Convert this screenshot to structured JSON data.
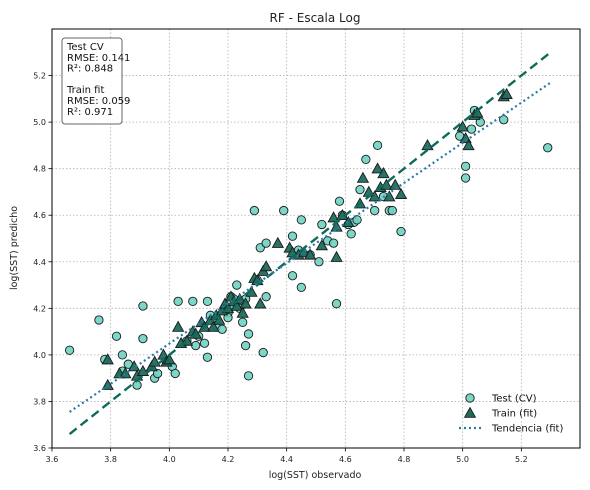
{
  "chart_data": {
    "type": "scatter",
    "title": "RF - Escala Log",
    "xlabel": "log(SST) observado",
    "ylabel": "log(SST) predicho",
    "xlim": [
      3.6,
      5.4
    ],
    "ylim": [
      3.6,
      5.4
    ],
    "xticks": [
      "3.6",
      "3.8",
      "4.0",
      "4.2",
      "4.4",
      "4.6",
      "4.8",
      "5.0",
      "5.2"
    ],
    "yticks": [
      "3.6",
      "3.8",
      "4.0",
      "4.2",
      "4.4",
      "4.6",
      "4.8",
      "5.0",
      "5.2"
    ],
    "grid": true,
    "legend_position": "bottom-right",
    "annotation": [
      "Test CV",
      "RMSE: 0.141",
      "R²: 0.848",
      "",
      "Train fit",
      "RMSE: 0.059",
      "R²: 0.971"
    ],
    "legend": {
      "test": "Test (CV)",
      "train": "Train (fit)",
      "trend": "Tendencia (fit)"
    },
    "colors": {
      "test_fill": "#6fd3c3",
      "train_fill": "#1e6b5e",
      "marker_edge": "#1a1a1a",
      "identity_line": "#0e6b5a",
      "trend_line": "#2a7aa6"
    },
    "identity_line": {
      "x": [
        3.66,
        5.3
      ],
      "y": [
        3.66,
        5.3
      ]
    },
    "trend_line": {
      "x": [
        3.66,
        5.3
      ],
      "y": [
        3.755,
        5.17
      ]
    },
    "series": [
      {
        "name": "Test (CV)",
        "marker": "circle",
        "points": [
          [
            3.66,
            4.02
          ],
          [
            3.76,
            4.15
          ],
          [
            3.78,
            3.98
          ],
          [
            3.82,
            4.08
          ],
          [
            3.84,
            4.0
          ],
          [
            3.84,
            3.93
          ],
          [
            3.86,
            3.96
          ],
          [
            3.89,
            3.87
          ],
          [
            3.91,
            4.21
          ],
          [
            3.91,
            4.07
          ],
          [
            3.95,
            3.9
          ],
          [
            3.96,
            3.92
          ],
          [
            3.99,
            3.97
          ],
          [
            4.01,
            3.95
          ],
          [
            4.02,
            3.92
          ],
          [
            4.03,
            4.23
          ],
          [
            4.06,
            4.06
          ],
          [
            4.08,
            4.23
          ],
          [
            4.09,
            4.04
          ],
          [
            4.1,
            4.08
          ],
          [
            4.12,
            4.05
          ],
          [
            4.13,
            4.23
          ],
          [
            4.13,
            3.99
          ],
          [
            4.14,
            4.17
          ],
          [
            4.16,
            4.12
          ],
          [
            4.18,
            4.11
          ],
          [
            4.19,
            4.2
          ],
          [
            4.2,
            4.18
          ],
          [
            4.2,
            4.16
          ],
          [
            4.21,
            4.25
          ],
          [
            4.22,
            4.24
          ],
          [
            4.22,
            4.21
          ],
          [
            4.23,
            4.3
          ],
          [
            4.24,
            4.2
          ],
          [
            4.25,
            4.14
          ],
          [
            4.26,
            4.24
          ],
          [
            4.26,
            4.04
          ],
          [
            4.27,
            4.09
          ],
          [
            4.27,
            3.91
          ],
          [
            4.29,
            4.62
          ],
          [
            4.3,
            4.32
          ],
          [
            4.31,
            4.46
          ],
          [
            4.32,
            4.01
          ],
          [
            4.33,
            4.48
          ],
          [
            4.33,
            4.25
          ],
          [
            4.39,
            4.62
          ],
          [
            4.42,
            4.51
          ],
          [
            4.42,
            4.34
          ],
          [
            4.44,
            4.45
          ],
          [
            4.45,
            4.58
          ],
          [
            4.45,
            4.29
          ],
          [
            4.48,
            4.43
          ],
          [
            4.51,
            4.4
          ],
          [
            4.52,
            4.56
          ],
          [
            4.54,
            4.49
          ],
          [
            4.56,
            4.48
          ],
          [
            4.57,
            4.22
          ],
          [
            4.58,
            4.66
          ],
          [
            4.59,
            4.6
          ],
          [
            4.61,
            4.56
          ],
          [
            4.62,
            4.52
          ],
          [
            4.63,
            4.57
          ],
          [
            4.64,
            4.58
          ],
          [
            4.65,
            4.71
          ],
          [
            4.67,
            4.84
          ],
          [
            4.7,
            4.62
          ],
          [
            4.71,
            4.9
          ],
          [
            4.73,
            4.68
          ],
          [
            4.75,
            4.62
          ],
          [
            4.76,
            4.62
          ],
          [
            4.79,
            4.53
          ],
          [
            4.99,
            4.94
          ],
          [
            5.01,
            4.81
          ],
          [
            5.01,
            4.76
          ],
          [
            5.03,
            4.97
          ],
          [
            5.04,
            5.05
          ],
          [
            5.06,
            5.0
          ],
          [
            5.14,
            5.01
          ],
          [
            5.29,
            4.89
          ]
        ]
      },
      {
        "name": "Train (fit)",
        "marker": "triangle",
        "points": [
          [
            3.79,
            3.87
          ],
          [
            3.79,
            3.98
          ],
          [
            3.83,
            3.92
          ],
          [
            3.85,
            3.92
          ],
          [
            3.88,
            3.95
          ],
          [
            3.89,
            3.91
          ],
          [
            3.91,
            3.93
          ],
          [
            3.94,
            3.95
          ],
          [
            3.95,
            3.97
          ],
          [
            3.98,
            4.0
          ],
          [
            3.99,
            3.97
          ],
          [
            4.0,
            3.98
          ],
          [
            4.03,
            4.12
          ],
          [
            4.04,
            4.05
          ],
          [
            4.06,
            4.06
          ],
          [
            4.08,
            4.1
          ],
          [
            4.09,
            4.09
          ],
          [
            4.11,
            4.14
          ],
          [
            4.12,
            4.12
          ],
          [
            4.14,
            4.15
          ],
          [
            4.15,
            4.12
          ],
          [
            4.16,
            4.17
          ],
          [
            4.17,
            4.15
          ],
          [
            4.18,
            4.19
          ],
          [
            4.19,
            4.22
          ],
          [
            4.2,
            4.2
          ],
          [
            4.21,
            4.25
          ],
          [
            4.22,
            4.23
          ],
          [
            4.23,
            4.21
          ],
          [
            4.24,
            4.24
          ],
          [
            4.25,
            4.18
          ],
          [
            4.26,
            4.22
          ],
          [
            4.28,
            4.27
          ],
          [
            4.29,
            4.33
          ],
          [
            4.3,
            4.32
          ],
          [
            4.31,
            4.22
          ],
          [
            4.32,
            4.36
          ],
          [
            4.33,
            4.38
          ],
          [
            4.37,
            4.48
          ],
          [
            4.41,
            4.46
          ],
          [
            4.42,
            4.44
          ],
          [
            4.44,
            4.43
          ],
          [
            4.46,
            4.44
          ],
          [
            4.48,
            4.43
          ],
          [
            4.52,
            4.47
          ],
          [
            4.56,
            4.59
          ],
          [
            4.57,
            4.42
          ],
          [
            4.57,
            4.55
          ],
          [
            4.59,
            4.6
          ],
          [
            4.61,
            4.57
          ],
          [
            4.65,
            4.65
          ],
          [
            4.66,
            4.76
          ],
          [
            4.68,
            4.7
          ],
          [
            4.7,
            4.68
          ],
          [
            4.71,
            4.8
          ],
          [
            4.72,
            4.72
          ],
          [
            4.73,
            4.78
          ],
          [
            4.74,
            4.73
          ],
          [
            4.75,
            4.68
          ],
          [
            4.77,
            4.73
          ],
          [
            4.79,
            4.69
          ],
          [
            4.88,
            4.9
          ],
          [
            5.0,
            4.98
          ],
          [
            5.01,
            4.93
          ],
          [
            5.02,
            4.9
          ],
          [
            5.04,
            5.03
          ],
          [
            5.05,
            5.04
          ],
          [
            5.14,
            5.11
          ],
          [
            5.15,
            5.12
          ]
        ]
      }
    ]
  }
}
